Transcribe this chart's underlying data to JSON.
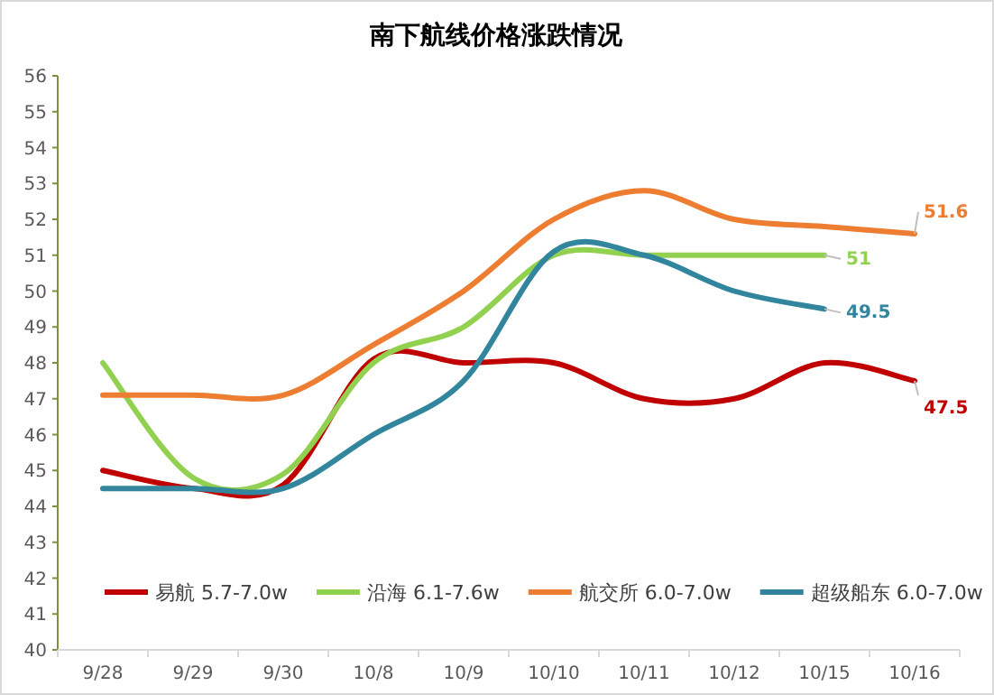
{
  "chart_data": {
    "type": "line",
    "title": "南下航线价格涨跌情况",
    "categories": [
      "9/28",
      "9/29",
      "9/30",
      "10/8",
      "10/9",
      "10/10",
      "10/11",
      "10/12",
      "10/15",
      "10/16"
    ],
    "ylim": [
      40,
      56
    ],
    "yticks": [
      40,
      41,
      42,
      43,
      44,
      45,
      46,
      47,
      48,
      49,
      50,
      51,
      52,
      53,
      54,
      55,
      56
    ],
    "grid": false,
    "legend": "bottom",
    "marker": "none",
    "line_style": "solid",
    "series": [
      {
        "name": "易航 5.7-7.0w",
        "color": "#c00000",
        "values": [
          45,
          44.5,
          44.6,
          48.1,
          48,
          48,
          47,
          47,
          48,
          47.5
        ],
        "value_labels": [
          null,
          null,
          null,
          null,
          null,
          null,
          null,
          null,
          null,
          "47.5"
        ]
      },
      {
        "name": "沿海 6.1-7.6w",
        "color": "#92d050",
        "values": [
          48,
          44.8,
          44.9,
          48,
          49,
          51,
          51,
          51,
          51,
          null
        ],
        "value_labels": [
          null,
          null,
          null,
          null,
          null,
          null,
          null,
          null,
          "51",
          null
        ]
      },
      {
        "name": "航交所 6.0-7.0w",
        "color": "#ed7d31",
        "values": [
          47.1,
          47.1,
          47.1,
          48.5,
          50,
          52,
          52.8,
          52,
          51.8,
          51.6
        ],
        "value_labels": [
          null,
          null,
          null,
          null,
          null,
          null,
          null,
          null,
          null,
          "51.6"
        ]
      },
      {
        "name": "超级船东 6.0-7.0w",
        "color": "#31859c",
        "values": [
          44.5,
          44.5,
          44.5,
          46,
          47.5,
          51.1,
          51,
          50,
          49.5,
          null
        ],
        "value_labels": [
          null,
          null,
          null,
          null,
          null,
          null,
          null,
          null,
          "49.5",
          null
        ]
      }
    ]
  }
}
